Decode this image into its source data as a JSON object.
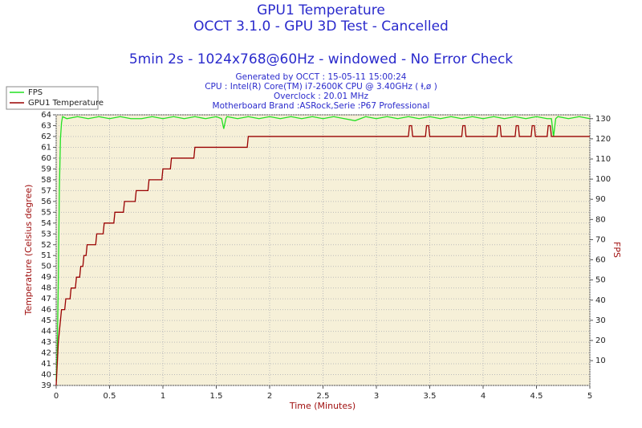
{
  "chart_data": {
    "type": "line",
    "title": "GPU1 Temperature",
    "subtitle_lines": [
      "OCCT 3.1.0 - GPU 3D Test - Cancelled",
      "5min 2s - 1024x768@60Hz - windowed - No Error Check"
    ],
    "info_lines": [
      "Generated by OCCT : 15-05-11 15:00:24",
      "CPU : Intel(R) Core(TM) i7-2600K CPU @ 3.40GHz ( ⱡ,ø )",
      "Overclock : 20.01 MHz",
      "Motherboard Brand :ASRock,Serie :P67 Professional"
    ],
    "xlabel": "Time (Minutes)",
    "ylabel": "Temperature (Celsius degree)",
    "y2label": "FPS",
    "xlim": [
      0,
      5
    ],
    "xticks": [
      0,
      0.5,
      1,
      1.5,
      2,
      2.5,
      3,
      3.5,
      4,
      4.5,
      5
    ],
    "ylim": [
      39,
      64
    ],
    "yticks": [
      39,
      40,
      41,
      42,
      43,
      44,
      45,
      46,
      47,
      48,
      49,
      50,
      51,
      52,
      53,
      54,
      55,
      56,
      57,
      58,
      59,
      60,
      61,
      62,
      63,
      64
    ],
    "y2lim": [
      -2.3,
      131.9
    ],
    "y2ticks": [
      10,
      20,
      30,
      40,
      50,
      60,
      70,
      80,
      90,
      100,
      110,
      120,
      130
    ],
    "grid": true,
    "legend": "top-left",
    "series": [
      {
        "name": "FPS",
        "color": "#22e022",
        "axis": "y2",
        "x": [
          0,
          0.01,
          0.02,
          0.03,
          0.04,
          0.05,
          0.06,
          0.1,
          0.2,
          0.3,
          0.4,
          0.5,
          0.6,
          0.7,
          0.8,
          0.9,
          1.0,
          1.1,
          1.2,
          1.3,
          1.4,
          1.5,
          1.55,
          1.57,
          1.59,
          1.6,
          1.7,
          1.8,
          1.9,
          2.0,
          2.1,
          2.2,
          2.3,
          2.4,
          2.5,
          2.6,
          2.7,
          2.8,
          2.9,
          3.0,
          3.1,
          3.2,
          3.3,
          3.4,
          3.5,
          3.6,
          3.7,
          3.8,
          3.9,
          4.0,
          4.1,
          4.2,
          4.3,
          4.4,
          4.5,
          4.6,
          4.64,
          4.66,
          4.68,
          4.7,
          4.8,
          4.9,
          5.0
        ],
        "values": [
          0,
          15,
          50,
          95,
          120,
          128,
          131,
          130,
          131,
          130,
          131,
          130,
          131,
          130,
          130,
          131,
          130,
          131,
          130,
          131,
          130,
          131,
          130,
          125,
          130,
          131,
          130,
          131,
          130,
          131,
          130,
          131,
          130,
          131,
          130,
          131,
          130,
          129,
          131,
          130,
          131,
          130,
          131,
          130,
          131,
          130,
          131,
          130,
          131,
          130,
          131,
          130,
          131,
          130,
          131,
          130,
          130,
          121,
          130,
          131,
          130,
          131,
          130
        ]
      },
      {
        "name": "GPU1 Temperature",
        "color": "#990000",
        "axis": "y",
        "x": [
          0,
          0.005,
          0.01,
          0.015,
          0.02,
          0.03,
          0.04,
          0.05,
          0.08,
          0.09,
          0.13,
          0.14,
          0.18,
          0.19,
          0.22,
          0.23,
          0.25,
          0.26,
          0.28,
          0.29,
          0.37,
          0.38,
          0.44,
          0.45,
          0.54,
          0.55,
          0.63,
          0.64,
          0.74,
          0.75,
          0.86,
          0.87,
          0.99,
          1.0,
          1.07,
          1.08,
          1.29,
          1.3,
          1.79,
          1.8,
          3.3,
          3.31,
          3.33,
          3.34,
          3.46,
          3.47,
          3.49,
          3.5,
          3.8,
          3.81,
          3.83,
          3.84,
          4.13,
          4.14,
          4.16,
          4.17,
          4.3,
          4.31,
          4.33,
          4.34,
          4.45,
          4.46,
          4.48,
          4.49,
          4.6,
          4.61,
          4.63,
          4.64,
          5
        ],
        "values": [
          39,
          40,
          41,
          42,
          43,
          44,
          45,
          46,
          46,
          47,
          47,
          48,
          48,
          49,
          49,
          50,
          50,
          51,
          51,
          52,
          52,
          53,
          53,
          54,
          54,
          55,
          55,
          56,
          56,
          57,
          57,
          58,
          58,
          59,
          59,
          60,
          60,
          61,
          61,
          62,
          62,
          63,
          63,
          62,
          62,
          63,
          63,
          62,
          62,
          63,
          63,
          62,
          62,
          63,
          63,
          62,
          62,
          63,
          63,
          62,
          62,
          63,
          63,
          62,
          62,
          63,
          63,
          62,
          62
        ]
      }
    ]
  }
}
